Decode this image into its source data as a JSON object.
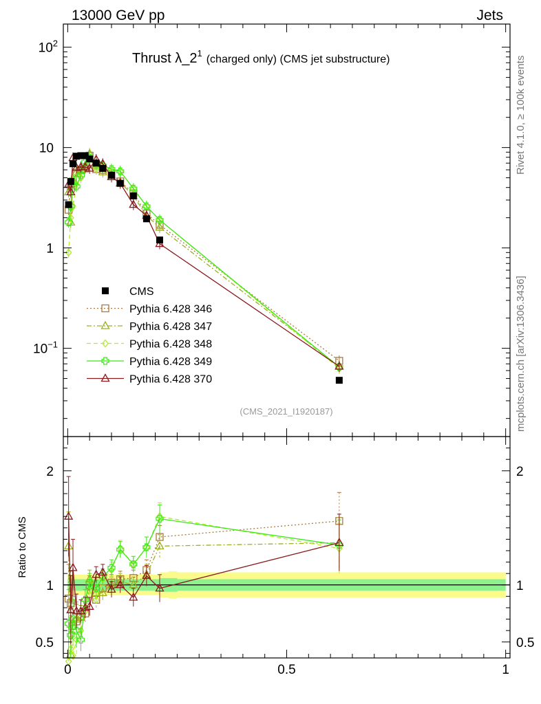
{
  "header": {
    "left": "13000 GeV pp",
    "right": "Jets"
  },
  "side_labels": {
    "rivet": "Rivet 4.1.0, ≥ 100k events",
    "mcplots": "mcplots.cern.ch [arXiv:1306.3436]"
  },
  "reference": "(CMS_2021_I1920187)",
  "colors": {
    "CMS": "#000000",
    "346": "#a87a3c",
    "347": "#9ab020",
    "348": "#b2ec2c",
    "349": "#3ee818",
    "370": "#8b1a1e",
    "band_inner": "#8df28d",
    "band_outer": "#fbfb8c"
  },
  "chart_data": [
    {
      "type": "line",
      "title": "Thrust λ_2",
      "title_sup": "1",
      "title_suffix": "(charged only) (CMS jet substructure)",
      "xlabel": "",
      "ylabel": "",
      "xlim": [
        -0.01,
        1.01
      ],
      "ylim": [
        0.0132,
        170
      ],
      "yscale": "log",
      "yticks": [
        {
          "value": 0.1,
          "base": "10",
          "exp": "−1"
        },
        {
          "value": 1,
          "base": "1",
          "exp": ""
        },
        {
          "value": 10,
          "base": "10",
          "exp": ""
        },
        {
          "value": 100,
          "base": "10",
          "exp": "2"
        }
      ],
      "legend_position": "middle-left",
      "series": [
        {
          "name": "CMS",
          "key": "CMS",
          "style": "data",
          "x": [
            0.002,
            0.007,
            0.012,
            0.02,
            0.03,
            0.04,
            0.05,
            0.065,
            0.08,
            0.1,
            0.12,
            0.15,
            0.18,
            0.21,
            0.62
          ],
          "y": [
            2.7,
            4.6,
            6.9,
            8.2,
            8.3,
            8.3,
            7.7,
            7.0,
            6.2,
            5.3,
            4.4,
            3.3,
            1.95,
            1.2,
            0.048
          ]
        },
        {
          "name": "Pythia 6.428 346",
          "key": "346",
          "style": "dotted",
          "marker": "square",
          "x": [
            0.002,
            0.007,
            0.012,
            0.02,
            0.03,
            0.04,
            0.05,
            0.065,
            0.08,
            0.1,
            0.12,
            0.15,
            0.18,
            0.21,
            0.62
          ],
          "y": [
            2.4,
            3.9,
            4.4,
            5.6,
            6.0,
            6.2,
            8.3,
            6.1,
            6.0,
            5.4,
            4.6,
            3.5,
            2.2,
            1.7,
            0.075
          ]
        },
        {
          "name": "Pythia 6.428 347",
          "key": "347",
          "style": "dashdot",
          "marker": "triangle",
          "x": [
            0.002,
            0.007,
            0.012,
            0.02,
            0.03,
            0.04,
            0.05,
            0.065,
            0.08,
            0.1,
            0.12,
            0.15,
            0.18,
            0.21,
            0.62
          ],
          "y": [
            3.6,
            1.8,
            4.6,
            5.7,
            6.0,
            6.6,
            8.7,
            6.5,
            5.7,
            5.3,
            4.5,
            3.3,
            2.1,
            1.6,
            0.066
          ]
        },
        {
          "name": "Pythia 6.428 348",
          "key": "348",
          "style": "dashed",
          "marker": "diamond",
          "x": [
            0.002,
            0.007,
            0.012,
            0.02,
            0.03,
            0.04,
            0.05,
            0.065,
            0.08,
            0.1,
            0.12,
            0.15,
            0.18,
            0.21,
            0.62
          ],
          "y": [
            0.9,
            2.0,
            2.6,
            4.3,
            5.0,
            6.4,
            7.9,
            6.1,
            6.5,
            6.0,
            5.8,
            3.9,
            2.6,
            1.9,
            0.063
          ]
        },
        {
          "name": "Pythia 6.428 349",
          "key": "349",
          "style": "solid",
          "marker": "cross",
          "x": [
            0.002,
            0.007,
            0.012,
            0.02,
            0.03,
            0.04,
            0.05,
            0.065,
            0.08,
            0.1,
            0.12,
            0.15,
            0.18,
            0.21,
            0.62
          ],
          "y": [
            1.8,
            2.6,
            4.8,
            4.1,
            5.3,
            7.2,
            7.9,
            6.8,
            6.6,
            6.1,
            5.8,
            3.9,
            2.6,
            1.9,
            0.065
          ]
        },
        {
          "name": "Pythia 6.428 370",
          "key": "370",
          "style": "solid",
          "marker": "triangle",
          "x": [
            0.002,
            0.007,
            0.012,
            0.02,
            0.03,
            0.04,
            0.05,
            0.065,
            0.08,
            0.1,
            0.12,
            0.15,
            0.18,
            0.21,
            0.62
          ],
          "y": [
            4.3,
            3.6,
            7.9,
            6.3,
            6.4,
            6.4,
            6.2,
            7.6,
            6.9,
            5.1,
            4.4,
            2.7,
            2.1,
            1.1,
            0.066
          ]
        }
      ]
    },
    {
      "type": "line",
      "title": "",
      "xlabel": "",
      "ylabel": "Ratio to CMS",
      "xlim": [
        -0.01,
        1.01
      ],
      "ylim": [
        0.36,
        2.3
      ],
      "yticks": [
        {
          "value": 0.5,
          "label": "0.5"
        },
        {
          "value": 1,
          "label": "1"
        },
        {
          "value": 2,
          "label": "2"
        }
      ],
      "xticks": [
        {
          "value": 0,
          "label": "0"
        },
        {
          "value": 0.5,
          "label": "0.5"
        },
        {
          "value": 1,
          "label": "1"
        }
      ],
      "band": {
        "x": [
          0.0,
          0.2,
          0.21,
          0.23,
          0.25,
          1.0
        ],
        "inner": [
          0.05,
          0.05,
          0.06,
          0.06,
          0.05,
          0.05
        ],
        "outer": [
          0.09,
          0.09,
          0.11,
          0.12,
          0.11,
          0.11
        ]
      },
      "series": [
        {
          "key": "346",
          "style": "dotted",
          "marker": "square",
          "x": [
            0.002,
            0.007,
            0.012,
            0.02,
            0.03,
            0.04,
            0.05,
            0.065,
            0.08,
            0.1,
            0.12,
            0.15,
            0.18,
            0.21,
            0.62
          ],
          "y": [
            0.88,
            0.84,
            0.64,
            0.68,
            0.72,
            0.75,
            1.0,
            0.87,
            0.97,
            1.02,
            1.05,
            1.06,
            1.13,
            1.42,
            1.56
          ],
          "err": [
            0.3,
            0.28,
            0.2,
            0.15,
            0.1,
            0.09,
            0.08,
            0.07,
            0.07,
            0.07,
            0.07,
            0.07,
            0.09,
            0.1,
            0.25
          ]
        },
        {
          "key": "347",
          "style": "dashdot",
          "marker": "triangle",
          "x": [
            0.002,
            0.007,
            0.012,
            0.02,
            0.03,
            0.04,
            0.05,
            0.065,
            0.08,
            0.1,
            0.12,
            0.15,
            0.18,
            0.21,
            0.62
          ],
          "y": [
            1.34,
            0.39,
            0.67,
            0.7,
            0.72,
            0.8,
            1.05,
            0.93,
            0.93,
            1.0,
            1.03,
            1.0,
            1.09,
            1.34,
            1.37
          ],
          "err": [
            0.3,
            0.28,
            0.2,
            0.15,
            0.1,
            0.09,
            0.08,
            0.07,
            0.07,
            0.07,
            0.07,
            0.07,
            0.09,
            0.1,
            0.22
          ]
        },
        {
          "key": "348",
          "style": "dashed",
          "marker": "diamond",
          "x": [
            0.002,
            0.007,
            0.012,
            0.02,
            0.03,
            0.04,
            0.05,
            0.065,
            0.08,
            0.1,
            0.12,
            0.15,
            0.18,
            0.21,
            0.62
          ],
          "y": [
            0.33,
            0.44,
            0.38,
            0.52,
            0.6,
            0.77,
            0.95,
            0.87,
            1.05,
            1.13,
            1.32,
            1.18,
            1.33,
            1.6,
            1.32
          ],
          "err": [
            0.3,
            0.28,
            0.2,
            0.15,
            0.1,
            0.09,
            0.08,
            0.07,
            0.07,
            0.07,
            0.07,
            0.07,
            0.09,
            0.12,
            0.22
          ]
        },
        {
          "key": "349",
          "style": "solid",
          "marker": "cross",
          "x": [
            0.002,
            0.007,
            0.012,
            0.02,
            0.03,
            0.04,
            0.05,
            0.065,
            0.08,
            0.1,
            0.12,
            0.15,
            0.18,
            0.21,
            0.62
          ],
          "y": [
            0.66,
            0.56,
            0.7,
            0.6,
            0.52,
            0.87,
            1.02,
            0.97,
            1.07,
            1.15,
            1.31,
            1.18,
            1.33,
            1.58,
            1.35
          ],
          "err": [
            0.3,
            0.28,
            0.2,
            0.15,
            0.1,
            0.09,
            0.08,
            0.07,
            0.07,
            0.07,
            0.07,
            0.07,
            0.09,
            0.12,
            0.22
          ]
        },
        {
          "key": "370",
          "style": "solid",
          "marker": "triangle",
          "x": [
            0.002,
            0.007,
            0.012,
            0.02,
            0.03,
            0.04,
            0.05,
            0.065,
            0.08,
            0.1,
            0.12,
            0.15,
            0.18,
            0.21,
            0.62
          ],
          "y": [
            1.6,
            0.78,
            1.15,
            0.77,
            0.77,
            0.8,
            0.81,
            1.09,
            1.11,
            0.96,
            1.0,
            0.89,
            1.08,
            0.97,
            1.37
          ],
          "err": [
            0.35,
            0.3,
            0.25,
            0.15,
            0.1,
            0.09,
            0.08,
            0.07,
            0.07,
            0.07,
            0.07,
            0.08,
            0.09,
            0.12,
            0.25
          ]
        }
      ]
    }
  ]
}
